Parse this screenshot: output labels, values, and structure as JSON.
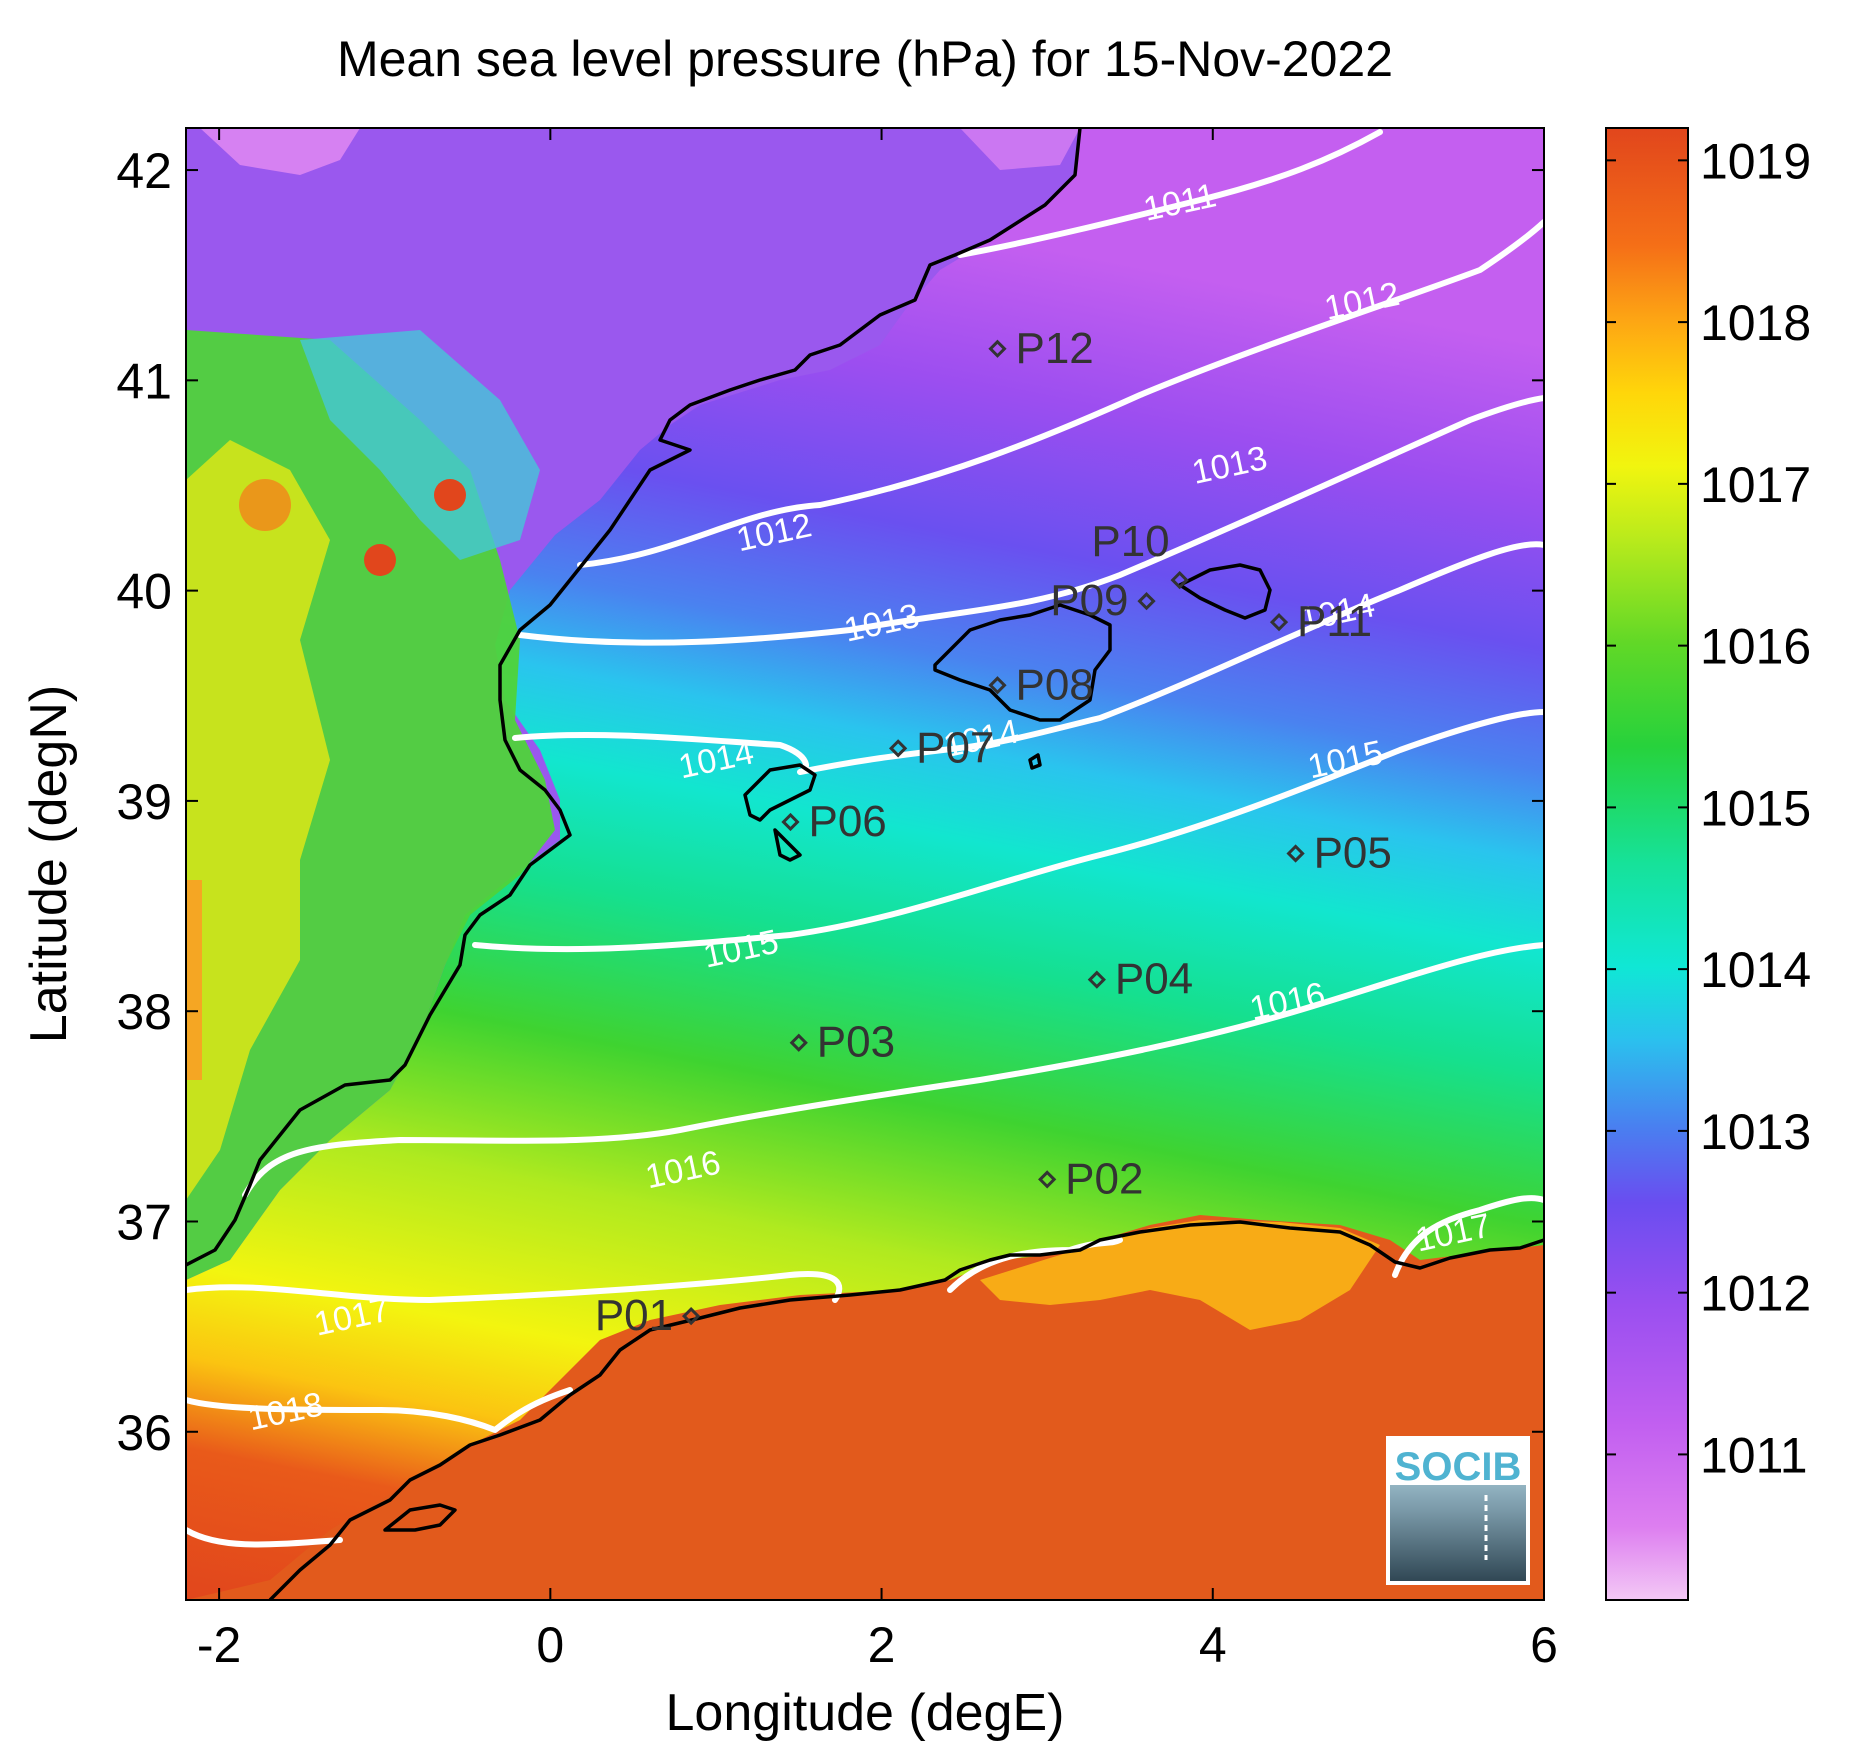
{
  "title": "Mean sea level pressure (hPa) for 15-Nov-2022",
  "xlabel": "Longitude (degE)",
  "ylabel": "Latitude (degN)",
  "logo_text": "SOCIB",
  "map": {
    "lon_range": [
      -2.2,
      6.0
    ],
    "lat_range": [
      35.2,
      42.2
    ],
    "x_ticks": [
      -2,
      0,
      2,
      4,
      6
    ],
    "x_tick_labels": [
      "-2",
      "0",
      "2",
      "4",
      "6"
    ],
    "y_ticks": [
      36,
      37,
      38,
      39,
      40,
      41,
      42
    ],
    "y_tick_labels": [
      "36",
      "37",
      "38",
      "39",
      "40",
      "41",
      "42"
    ]
  },
  "colorbar": {
    "range": [
      1010.1,
      1019.2
    ],
    "ticks": [
      1011,
      1012,
      1013,
      1014,
      1015,
      1016,
      1017,
      1018,
      1019
    ],
    "tick_labels": [
      "1011",
      "1012",
      "1013",
      "1014",
      "1015",
      "1016",
      "1017",
      "1018",
      "1019"
    ]
  },
  "colors": {
    "contour": "#ffffff",
    "coastline": "#000000",
    "station": "#333333",
    "logo_text": "#4fb3d1"
  },
  "contour_labels": [
    {
      "text": "1011",
      "lon": 3.8,
      "lat": 41.85
    },
    {
      "text": "1012",
      "lon": 4.9,
      "lat": 41.38
    },
    {
      "text": "1012",
      "lon": 1.35,
      "lat": 40.28
    },
    {
      "text": "1013",
      "lon": 4.1,
      "lat": 40.6
    },
    {
      "text": "1013",
      "lon": 2.0,
      "lat": 39.85
    },
    {
      "text": "1014",
      "lon": 4.75,
      "lat": 39.9
    },
    {
      "text": "1014",
      "lon": 1.0,
      "lat": 39.2
    },
    {
      "text": "1014",
      "lon": 2.6,
      "lat": 39.3
    },
    {
      "text": "1015",
      "lon": 4.8,
      "lat": 39.2
    },
    {
      "text": "1015",
      "lon": 1.15,
      "lat": 38.3
    },
    {
      "text": "1016",
      "lon": 4.45,
      "lat": 38.05
    },
    {
      "text": "1016",
      "lon": 0.8,
      "lat": 37.25
    },
    {
      "text": "1017",
      "lon": 5.45,
      "lat": 36.95
    },
    {
      "text": "1017",
      "lon": -1.2,
      "lat": 36.55
    },
    {
      "text": "1018",
      "lon": -1.6,
      "lat": 36.1
    }
  ],
  "stations": [
    {
      "name": "P01",
      "lon": 0.85,
      "lat": 36.55,
      "label_side": "left"
    },
    {
      "name": "P02",
      "lon": 3.0,
      "lat": 37.2,
      "label_side": "right"
    },
    {
      "name": "P03",
      "lon": 1.5,
      "lat": 37.85,
      "label_side": "right"
    },
    {
      "name": "P04",
      "lon": 3.3,
      "lat": 38.15,
      "label_side": "right"
    },
    {
      "name": "P05",
      "lon": 4.5,
      "lat": 38.75,
      "label_side": "right"
    },
    {
      "name": "P06",
      "lon": 1.45,
      "lat": 38.9,
      "label_side": "right"
    },
    {
      "name": "P07",
      "lon": 2.1,
      "lat": 39.25,
      "label_side": "right"
    },
    {
      "name": "P08",
      "lon": 2.7,
      "lat": 39.55,
      "label_side": "right"
    },
    {
      "name": "P09",
      "lon": 3.6,
      "lat": 39.95,
      "label_side": "left"
    },
    {
      "name": "P10",
      "lon": 3.8,
      "lat": 40.05,
      "label_side": "above-left"
    },
    {
      "name": "P11",
      "lon": 4.4,
      "lat": 39.85,
      "label_side": "right"
    },
    {
      "name": "P12",
      "lon": 2.7,
      "lat": 41.15,
      "label_side": "right"
    }
  ]
}
